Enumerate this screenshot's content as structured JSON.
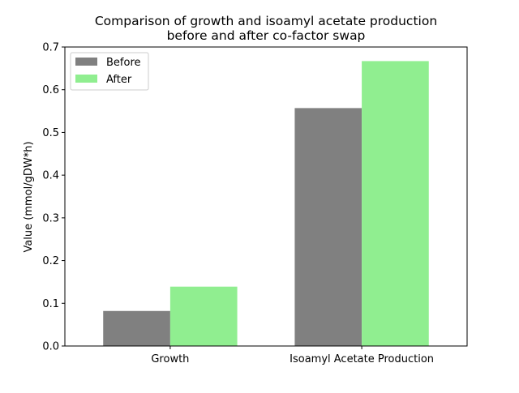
{
  "chart_data": {
    "type": "bar",
    "title_lines": [
      "Comparison of growth and isoamyl acetate production",
      "before and after co-factor swap"
    ],
    "xlabel": "",
    "ylabel": "Value (mmol/gDW*h)",
    "categories": [
      "Growth",
      "Isoamyl Acetate Production"
    ],
    "series": [
      {
        "name": "Before",
        "color": "#808080",
        "values": [
          0.082,
          0.557
        ]
      },
      {
        "name": "After",
        "color": "#90ee90",
        "values": [
          0.139,
          0.667
        ]
      }
    ],
    "ylim": [
      0,
      0.7
    ],
    "yticks": [
      "0.0",
      "0.1",
      "0.2",
      "0.3",
      "0.4",
      "0.5",
      "0.6",
      "0.7"
    ],
    "grid": false,
    "legend_position": "upper left"
  }
}
